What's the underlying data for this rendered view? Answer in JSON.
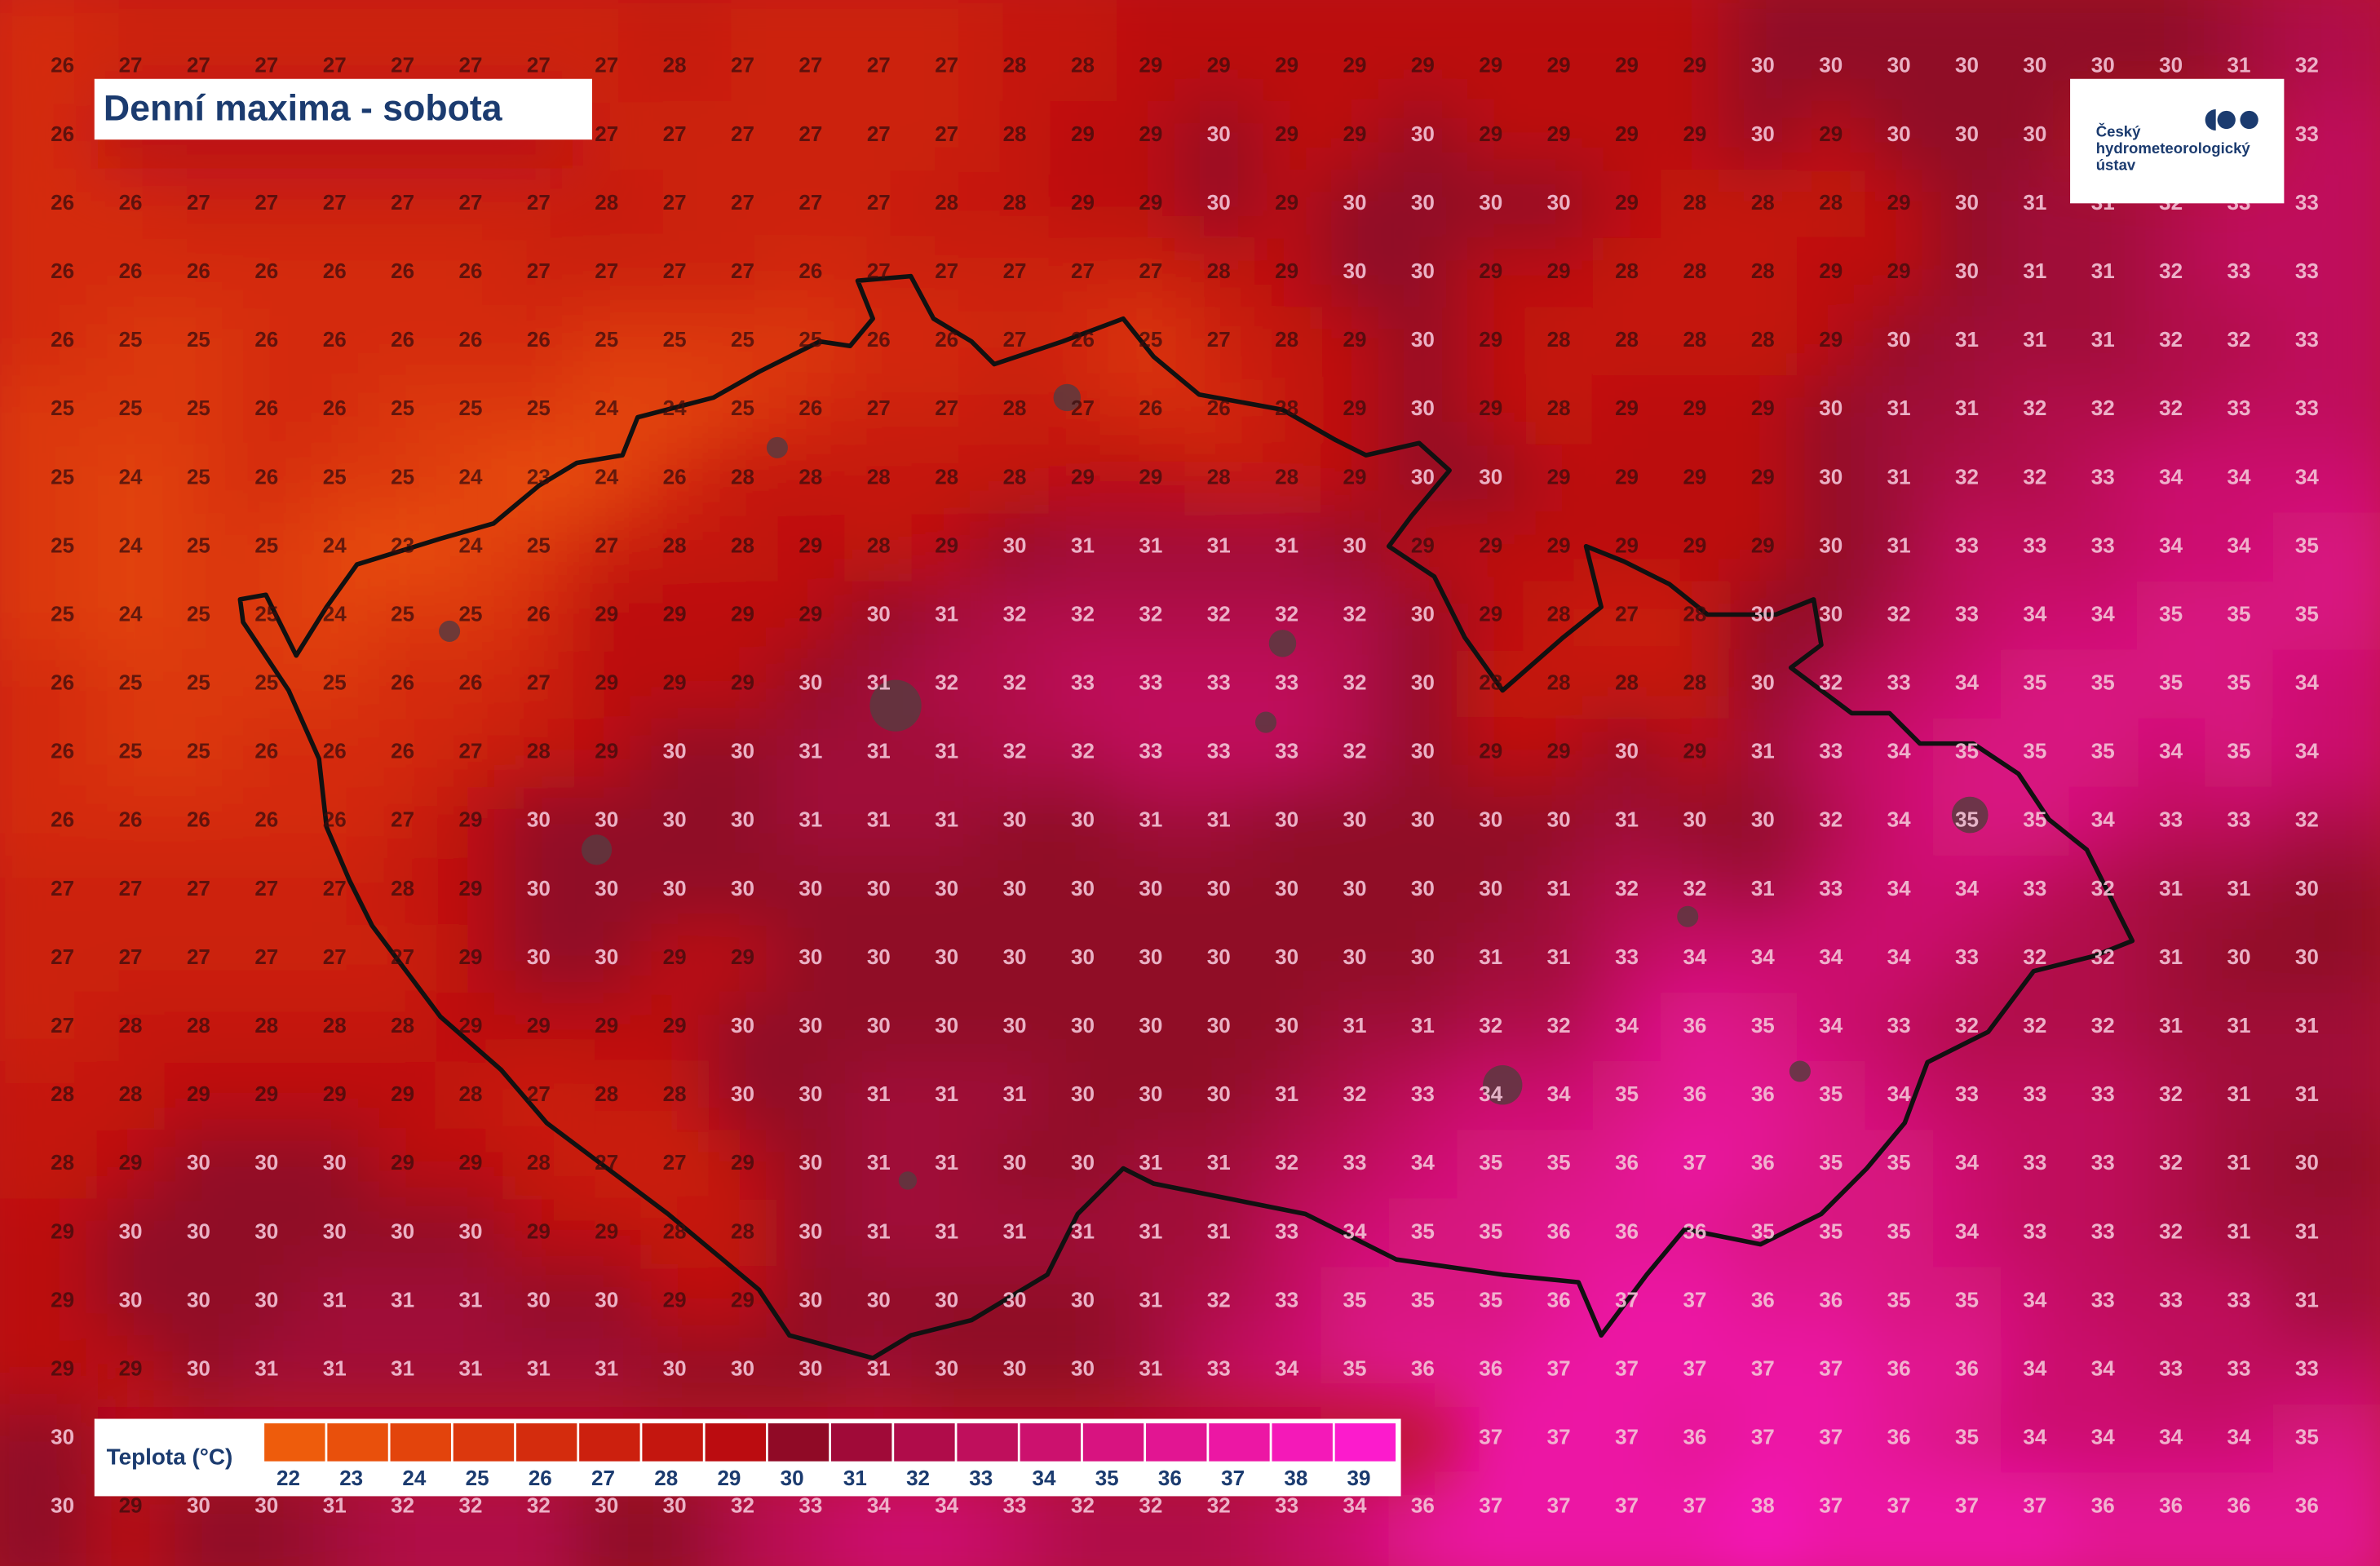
{
  "header": {
    "title": "Denní maxima - sobota"
  },
  "logo": {
    "lines": [
      "Český",
      "hydrometeorologický",
      "ústav"
    ]
  },
  "legend": {
    "title": "Teplota (°C)",
    "items": [
      {
        "value": 22,
        "color": "#ee5c0c"
      },
      {
        "value": 23,
        "color": "#e9500c"
      },
      {
        "value": 24,
        "color": "#e3440c"
      },
      {
        "value": 25,
        "color": "#dc380d"
      },
      {
        "value": 26,
        "color": "#d42c0d"
      },
      {
        "value": 27,
        "color": "#cc200e"
      },
      {
        "value": 28,
        "color": "#c4160f"
      },
      {
        "value": 29,
        "color": "#bb0c10"
      },
      {
        "value": 30,
        "color": "#900a26"
      },
      {
        "value": 31,
        "color": "#a00a38"
      },
      {
        "value": 32,
        "color": "#b00c4a"
      },
      {
        "value": 33,
        "color": "#bf0f5c"
      },
      {
        "value": 34,
        "color": "#cc116e"
      },
      {
        "value": 35,
        "color": "#d81380"
      },
      {
        "value": 36,
        "color": "#e21592"
      },
      {
        "value": 37,
        "color": "#ec17a4"
      },
      {
        "value": 38,
        "color": "#f419b8"
      },
      {
        "value": 39,
        "color": "#fc1bcc"
      }
    ]
  },
  "grid": {
    "rows": [
      [
        26,
        27,
        27,
        27,
        27,
        27,
        27,
        27,
        27,
        28,
        27,
        27,
        27,
        27,
        28,
        28,
        29,
        29,
        29,
        29,
        29,
        29,
        29,
        29,
        29,
        30,
        30,
        30,
        30,
        30,
        30,
        30,
        31,
        32
      ],
      [
        26,
        null,
        null,
        null,
        null,
        null,
        null,
        null,
        27,
        27,
        27,
        27,
        27,
        27,
        28,
        29,
        29,
        30,
        29,
        29,
        30,
        29,
        29,
        29,
        29,
        30,
        29,
        30,
        30,
        30,
        null,
        null,
        null,
        33
      ],
      [
        26,
        26,
        27,
        27,
        27,
        27,
        27,
        27,
        28,
        27,
        27,
        27,
        27,
        28,
        28,
        29,
        29,
        30,
        29,
        30,
        30,
        30,
        30,
        29,
        28,
        28,
        28,
        29,
        30,
        31,
        31,
        32,
        33,
        33
      ],
      [
        26,
        26,
        26,
        26,
        26,
        26,
        26,
        27,
        27,
        27,
        27,
        26,
        27,
        27,
        27,
        27,
        27,
        28,
        29,
        30,
        30,
        29,
        29,
        28,
        28,
        28,
        29,
        29,
        30,
        31,
        31,
        32,
        33,
        33
      ],
      [
        26,
        25,
        25,
        26,
        26,
        26,
        26,
        26,
        25,
        25,
        25,
        25,
        26,
        26,
        27,
        26,
        25,
        27,
        28,
        29,
        30,
        29,
        28,
        28,
        28,
        28,
        29,
        30,
        31,
        31,
        31,
        32,
        32,
        33
      ],
      [
        25,
        25,
        25,
        26,
        26,
        25,
        25,
        25,
        24,
        24,
        25,
        26,
        27,
        27,
        28,
        27,
        26,
        26,
        28,
        29,
        30,
        29,
        28,
        29,
        29,
        29,
        30,
        31,
        31,
        32,
        32,
        32,
        33,
        33
      ],
      [
        25,
        24,
        25,
        26,
        25,
        25,
        24,
        23,
        24,
        26,
        28,
        28,
        28,
        28,
        28,
        29,
        29,
        28,
        28,
        29,
        30,
        30,
        29,
        29,
        29,
        29,
        30,
        31,
        32,
        32,
        33,
        34,
        34,
        34
      ],
      [
        25,
        24,
        25,
        25,
        24,
        23,
        24,
        25,
        27,
        28,
        28,
        29,
        28,
        29,
        30,
        31,
        31,
        31,
        31,
        30,
        29,
        29,
        29,
        29,
        29,
        29,
        30,
        31,
        33,
        33,
        33,
        34,
        34,
        35
      ],
      [
        25,
        24,
        25,
        25,
        24,
        25,
        25,
        26,
        29,
        29,
        29,
        29,
        30,
        31,
        32,
        32,
        32,
        32,
        32,
        32,
        30,
        29,
        28,
        27,
        28,
        30,
        30,
        32,
        33,
        34,
        34,
        35,
        35,
        35
      ],
      [
        26,
        25,
        25,
        25,
        25,
        26,
        26,
        27,
        29,
        29,
        29,
        30,
        31,
        32,
        32,
        33,
        33,
        33,
        33,
        32,
        30,
        28,
        28,
        28,
        28,
        30,
        32,
        33,
        34,
        35,
        35,
        35,
        35,
        34
      ],
      [
        26,
        25,
        25,
        26,
        26,
        26,
        27,
        28,
        29,
        30,
        30,
        31,
        31,
        31,
        32,
        32,
        33,
        33,
        33,
        32,
        30,
        29,
        29,
        30,
        29,
        31,
        33,
        34,
        35,
        35,
        35,
        34,
        35,
        34
      ],
      [
        26,
        26,
        26,
        26,
        26,
        27,
        29,
        30,
        30,
        30,
        30,
        31,
        31,
        31,
        30,
        30,
        31,
        31,
        30,
        30,
        30,
        30,
        30,
        31,
        30,
        30,
        32,
        34,
        35,
        35,
        34,
        33,
        33,
        32
      ],
      [
        27,
        27,
        27,
        27,
        27,
        28,
        29,
        30,
        30,
        30,
        30,
        30,
        30,
        30,
        30,
        30,
        30,
        30,
        30,
        30,
        30,
        30,
        31,
        32,
        32,
        31,
        33,
        34,
        34,
        33,
        32,
        31,
        31,
        30
      ],
      [
        27,
        27,
        27,
        27,
        27,
        27,
        29,
        30,
        30,
        29,
        29,
        30,
        30,
        30,
        30,
        30,
        30,
        30,
        30,
        30,
        30,
        31,
        31,
        33,
        34,
        34,
        34,
        34,
        33,
        32,
        32,
        31,
        30,
        30
      ],
      [
        27,
        28,
        28,
        28,
        28,
        28,
        29,
        29,
        29,
        29,
        30,
        30,
        30,
        30,
        30,
        30,
        30,
        30,
        30,
        31,
        31,
        32,
        32,
        34,
        36,
        35,
        34,
        33,
        32,
        32,
        32,
        31,
        31,
        31
      ],
      [
        28,
        28,
        29,
        29,
        29,
        29,
        28,
        27,
        28,
        28,
        30,
        30,
        31,
        31,
        31,
        30,
        30,
        30,
        31,
        32,
        33,
        34,
        34,
        35,
        36,
        36,
        35,
        34,
        33,
        33,
        33,
        32,
        31,
        31
      ],
      [
        28,
        29,
        30,
        30,
        30,
        29,
        29,
        28,
        27,
        27,
        29,
        30,
        31,
        31,
        30,
        30,
        31,
        31,
        32,
        33,
        34,
        35,
        35,
        36,
        37,
        36,
        35,
        35,
        34,
        33,
        33,
        32,
        31,
        30
      ],
      [
        29,
        30,
        30,
        30,
        30,
        30,
        30,
        29,
        29,
        28,
        28,
        30,
        31,
        31,
        31,
        31,
        31,
        31,
        33,
        34,
        35,
        35,
        36,
        36,
        36,
        35,
        35,
        35,
        34,
        33,
        33,
        32,
        31,
        31
      ],
      [
        29,
        30,
        30,
        30,
        31,
        31,
        31,
        30,
        30,
        29,
        29,
        30,
        30,
        30,
        30,
        30,
        31,
        32,
        33,
        35,
        35,
        35,
        36,
        37,
        37,
        36,
        36,
        35,
        35,
        34,
        33,
        33,
        33,
        31
      ],
      [
        29,
        29,
        30,
        31,
        31,
        31,
        31,
        31,
        31,
        30,
        30,
        30,
        31,
        30,
        30,
        30,
        31,
        33,
        34,
        35,
        36,
        36,
        37,
        37,
        37,
        37,
        37,
        36,
        36,
        34,
        34,
        33,
        33,
        33
      ],
      [
        30,
        null,
        null,
        null,
        null,
        null,
        null,
        null,
        null,
        null,
        null,
        null,
        null,
        null,
        null,
        null,
        null,
        null,
        null,
        null,
        null,
        37,
        37,
        37,
        36,
        37,
        37,
        36,
        35,
        34,
        34,
        34,
        34,
        35
      ],
      [
        30,
        29,
        30,
        30,
        31,
        32,
        32,
        32,
        30,
        30,
        32,
        33,
        34,
        34,
        33,
        32,
        32,
        32,
        33,
        34,
        36,
        37,
        37,
        37,
        37,
        38,
        37,
        37,
        37,
        37,
        36,
        36,
        36,
        36
      ]
    ]
  }
}
